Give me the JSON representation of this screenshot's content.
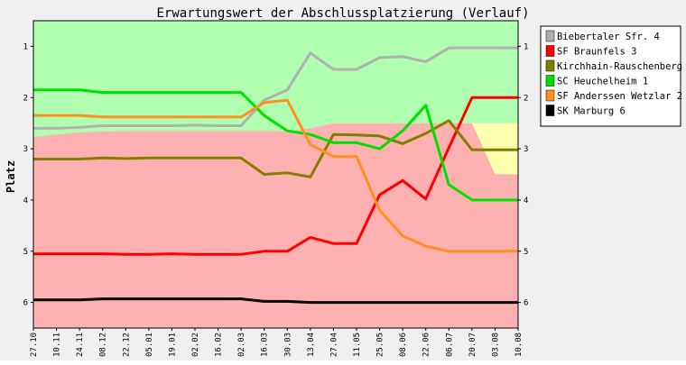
{
  "chart_data": {
    "type": "line",
    "title": "Erwartungswert der Abschlussplatzierung (Verlauf)",
    "ylabel": "Platz",
    "xlabel": "",
    "ylim": [
      6.5,
      0.5
    ],
    "y_inverted": true,
    "y_ticks": [
      "1",
      "2",
      "3",
      "4",
      "5",
      "6"
    ],
    "categories": [
      "27.10",
      "10.11",
      "24.11",
      "08.12",
      "22.12",
      "05.01",
      "19.01",
      "02.02",
      "16.02",
      "02.03",
      "16.03",
      "30.03",
      "13.04",
      "27.04",
      "11.05",
      "25.05",
      "08.06",
      "22.06",
      "06.07",
      "20.07",
      "03.08",
      "10.08"
    ],
    "zones": [
      {
        "name": "aufstieg",
        "color": "#b0ffb0",
        "upper": [
          2.77,
          2.72,
          2.68,
          2.66,
          2.65,
          2.65,
          2.65,
          2.65,
          2.65,
          2.65,
          2.65,
          2.65,
          2.6,
          2.5,
          2.5,
          2.5,
          2.5,
          2.5,
          2.5,
          2.5,
          2.5,
          2.5
        ]
      },
      {
        "name": "mittelfeld",
        "color": "#ffffb0",
        "upper": [
          2.77,
          2.72,
          2.68,
          2.66,
          2.65,
          2.65,
          2.65,
          2.65,
          2.65,
          2.65,
          2.65,
          2.65,
          2.6,
          2.5,
          2.5,
          2.5,
          2.5,
          2.5,
          2.5,
          2.5,
          3.5,
          3.5
        ]
      },
      {
        "name": "abstieg",
        "color": "#ffb0b0"
      }
    ],
    "grid": false,
    "legend_position": "right",
    "series": [
      {
        "name": "Biebertaler Sfr. 4",
        "color": "#b0b0b0",
        "values": [
          2.6,
          2.6,
          2.58,
          2.55,
          2.55,
          2.55,
          2.55,
          2.54,
          2.55,
          2.55,
          2.05,
          1.85,
          1.13,
          1.45,
          1.45,
          1.22,
          1.2,
          1.3,
          1.03,
          1.03,
          1.03,
          1.03
        ]
      },
      {
        "name": "SF Braunfels 3",
        "color": "#ff0000",
        "values": [
          5.05,
          5.05,
          5.05,
          5.05,
          5.06,
          5.06,
          5.05,
          5.06,
          5.06,
          5.06,
          5.0,
          5.0,
          4.73,
          4.85,
          4.85,
          3.9,
          3.62,
          3.98,
          2.98,
          2.0,
          2.0,
          2.0
        ]
      },
      {
        "name": "Kirchhain-Rauschenberg",
        "color": "#808000",
        "values": [
          3.2,
          3.2,
          3.2,
          3.18,
          3.19,
          3.18,
          3.18,
          3.18,
          3.18,
          3.18,
          3.5,
          3.47,
          3.55,
          2.72,
          2.73,
          2.75,
          2.9,
          2.7,
          2.45,
          3.02,
          3.02,
          3.02
        ]
      },
      {
        "name": "SC Heuchelheim 1",
        "color": "#00e000",
        "values": [
          1.85,
          1.85,
          1.85,
          1.9,
          1.9,
          1.9,
          1.9,
          1.9,
          1.9,
          1.9,
          2.35,
          2.65,
          2.72,
          2.88,
          2.88,
          3.0,
          2.65,
          2.15,
          3.7,
          4.0,
          4.0,
          4.0
        ]
      },
      {
        "name": "SF Anderssen Wetzlar 2",
        "color": "#ff9020",
        "values": [
          2.35,
          2.35,
          2.35,
          2.38,
          2.38,
          2.38,
          2.38,
          2.38,
          2.38,
          2.38,
          2.1,
          2.05,
          2.92,
          3.15,
          3.15,
          4.2,
          4.7,
          4.9,
          5.0,
          5.0,
          5.0,
          5.0
        ]
      },
      {
        "name": "SK Marburg 6",
        "color": "#000000",
        "values": [
          5.95,
          5.95,
          5.95,
          5.93,
          5.93,
          5.93,
          5.93,
          5.93,
          5.93,
          5.93,
          5.98,
          5.98,
          6.0,
          6.0,
          6.0,
          6.0,
          6.0,
          6.0,
          6.0,
          6.0,
          6.0,
          6.0
        ]
      }
    ]
  }
}
